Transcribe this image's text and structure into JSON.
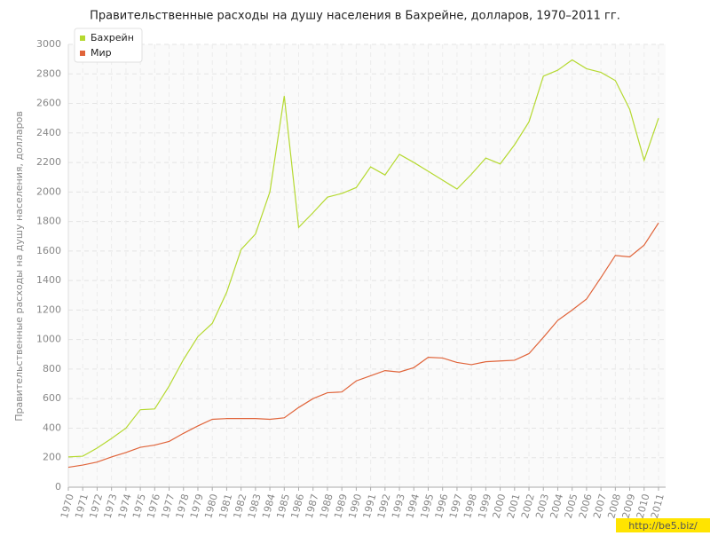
{
  "chart_data": {
    "type": "line",
    "title": "Правительственные расходы на душу населения в Бахрейне, долларов, 1970–2011 гг.",
    "y_label": "Правительственные расходы на душу населения, долларов",
    "categories": [
      "1970",
      "1971",
      "1972",
      "1973",
      "1974",
      "1975",
      "1976",
      "1977",
      "1978",
      "1979",
      "1980",
      "1981",
      "1982",
      "1983",
      "1984",
      "1985",
      "1986",
      "1987",
      "1988",
      "1989",
      "1990",
      "1991",
      "1992",
      "1993",
      "1994",
      "1995",
      "1996",
      "1997",
      "1998",
      "1999",
      "2000",
      "2001",
      "2002",
      "2003",
      "2004",
      "2005",
      "2006",
      "2007",
      "2008",
      "2009",
      "2010",
      "2011"
    ],
    "series": [
      {
        "name": "Бахрейн",
        "color": "#b5d930",
        "values": [
          205,
          210,
          265,
          330,
          400,
          525,
          530,
          685,
          865,
          1020,
          1110,
          1320,
          1610,
          1715,
          2000,
          2650,
          1760,
          1860,
          1965,
          1990,
          2030,
          2170,
          2115,
          2255,
          2200,
          2140,
          2080,
          2020,
          2120,
          2230,
          2190,
          2320,
          2475,
          2785,
          2825,
          2895,
          2835,
          2810,
          2755,
          2560,
          2215,
          2500
        ]
      },
      {
        "name": "Мир",
        "color": "#e0643a",
        "values": [
          135,
          150,
          170,
          205,
          235,
          270,
          285,
          310,
          365,
          415,
          460,
          465,
          465,
          465,
          460,
          470,
          540,
          600,
          640,
          645,
          720,
          755,
          790,
          780,
          810,
          880,
          875,
          845,
          830,
          850,
          855,
          860,
          905,
          1015,
          1130,
          1200,
          1275,
          1420,
          1570,
          1560,
          1640,
          1790
        ]
      }
    ],
    "ylim": [
      0,
      3000
    ],
    "yticks": [
      0,
      200,
      400,
      600,
      800,
      1000,
      1200,
      1400,
      1600,
      1800,
      2000,
      2200,
      2400,
      2600,
      2800,
      3000
    ],
    "grid": true,
    "legend": "top-left"
  },
  "watermark": "http://be5.biz/"
}
